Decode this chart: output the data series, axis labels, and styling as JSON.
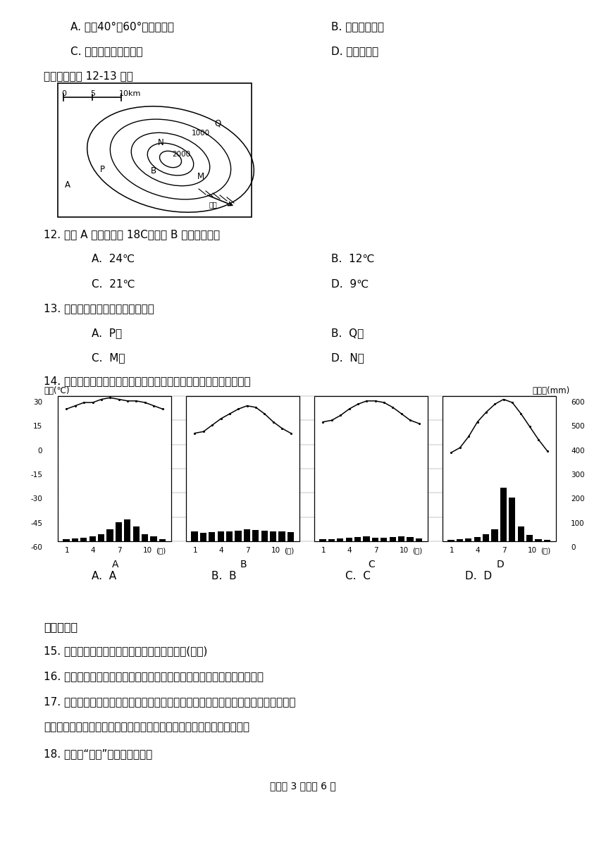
{
  "bg_color": "#ffffff",
  "q11_opts": [
    "A. 北纬40°～60°的大陆西屸",
    "B. 赤道附近地区",
    "C. 非洲北部的大陆西屸",
    "D. 亚洲东北部"
  ],
  "map_instr": "读下图，完成 12-13 题。",
  "q12_text": "12. 已知 A 点的温度为 18C，那么 B 点的温度约为",
  "q12_opts": [
    "A.  24℃",
    "B.  12℃",
    "C.  21℃",
    "D.  9℃"
  ],
  "q13_text": "13. 一般来讲，图中降水量最多的是",
  "q13_opts": [
    "A.  P地",
    "B.  Q地",
    "C.  M地",
    "D.  N地"
  ],
  "q14_text": "14. 下列四幅气温曲线图和降水量柱状图，其中表示热带季风气候的是",
  "q14_opts": [
    "A.  A",
    "B.  B",
    "C.  C",
    "D.  D"
  ],
  "sec2_title": "二、判断题",
  "q15": "15. 宿迁的降水类型主要以锋面雨和地形雨为主(　　)",
  "q16": "16. 在等降水量线图中，同一条等降水量线上各点的降水量相等。（　　）",
  "q17a": "17. 我们周围的大气中都含有一定数量的水汽，这些水汽在适宜的条件下就会凝结成水",
  "q17b": "滴或冰晶，并以雨、雪、冰雹等形式降落到地面，统称为降水。（　　）",
  "q18": "18. 世界的“干极”是撒哈拉沙漠。",
  "footer": "试卷第 3 页，共 6 页",
  "temp_label": "气温(℃)",
  "precip_label": "降水量(mm)",
  "yue": "(月)",
  "temp_A": [
    22,
    24,
    26,
    26,
    28,
    29,
    28,
    27,
    27,
    26,
    24,
    22
  ],
  "temp_B": [
    7,
    8,
    12,
    16,
    19,
    22,
    24,
    23,
    19,
    14,
    10,
    7
  ],
  "temp_C": [
    14,
    15,
    18,
    22,
    25,
    27,
    27,
    26,
    23,
    19,
    15,
    13
  ],
  "temp_D": [
    -5,
    -2,
    5,
    14,
    20,
    25,
    28,
    26,
    19,
    11,
    3,
    -4
  ],
  "precip_A": [
    10,
    12,
    15,
    20,
    30,
    50,
    80,
    90,
    60,
    30,
    20,
    10
  ],
  "precip_B": [
    40,
    35,
    38,
    40,
    42,
    45,
    50,
    48,
    45,
    42,
    40,
    38
  ],
  "precip_C": [
    10,
    10,
    12,
    15,
    18,
    20,
    15,
    15,
    18,
    20,
    18,
    12
  ],
  "precip_D": [
    5,
    8,
    12,
    18,
    30,
    50,
    220,
    180,
    60,
    25,
    10,
    5
  ],
  "chart_labels": [
    "A",
    "B",
    "C",
    "D"
  ]
}
